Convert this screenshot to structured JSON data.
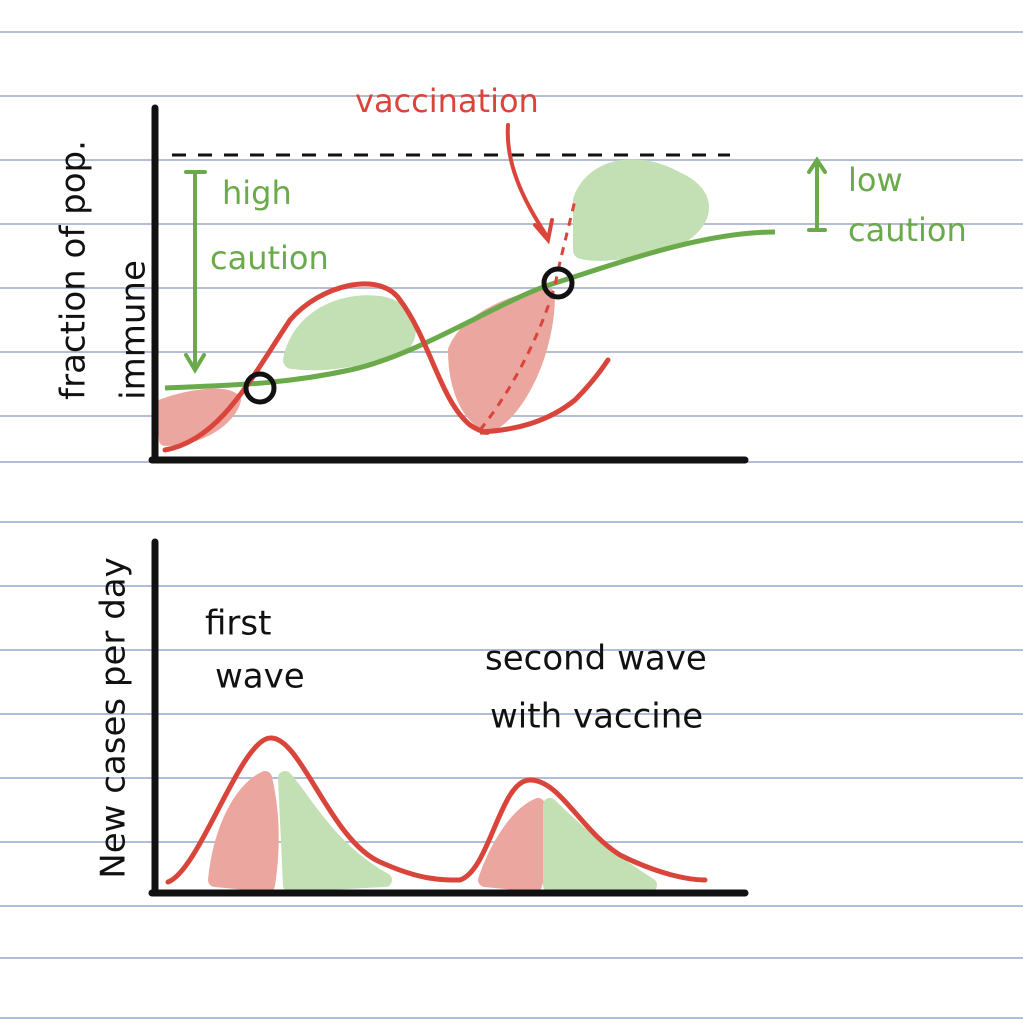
{
  "top_plot": {
    "y_label_lines": [
      "fraction of pop.",
      "immune"
    ],
    "annotation": "vaccination",
    "high_caution": [
      "high",
      "caution"
    ],
    "low_caution": [
      "low",
      "caution"
    ]
  },
  "bottom_plot": {
    "y_label": "New cases per day",
    "first_wave": [
      "first",
      "wave"
    ],
    "second_wave": [
      "second wave",
      "with vaccine"
    ]
  }
}
